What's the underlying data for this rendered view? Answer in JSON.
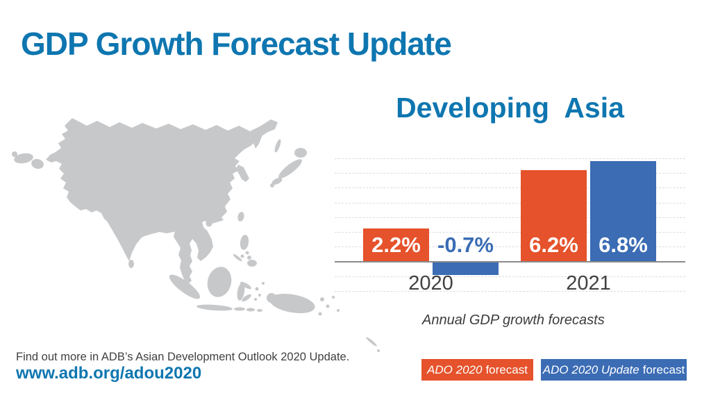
{
  "header": {
    "title": "GDP Growth Forecast Update"
  },
  "colors": {
    "title_blue": "#0E76B0",
    "orange": "#E5522B",
    "blue": "#3B6CB4",
    "map_gray": "#C7C8CA",
    "axis_gray": "#8A8A8A",
    "gridline_gray": "#DCDCDC",
    "dark_text": "#414042",
    "label_white": "#FFFFFF"
  },
  "chart_data": {
    "type": "bar",
    "title": "Developing  Asia",
    "categories": [
      "2020",
      "2021"
    ],
    "series": [
      {
        "name": "ADO 2020 forecast",
        "color": "#E5522B",
        "values": [
          2.2,
          6.2
        ]
      },
      {
        "name": "ADO 2020 Update forecast",
        "color": "#3B6CB4",
        "values": [
          -0.7,
          6.8
        ]
      }
    ],
    "data_labels": [
      [
        "2.2%",
        "-0.7%"
      ],
      [
        "6.2%",
        "6.8%"
      ]
    ],
    "unit": "percent",
    "ylim": [
      -2,
      7
    ],
    "gridline_step": 1,
    "grid": "horizontal dashed",
    "baseline": "solid zero axis",
    "caption": "Annual GDP growth forecasts",
    "legend_position": "bottom right"
  },
  "legend": {
    "items": [
      {
        "label_italic": "ADO 2020",
        "label_regular": "forecast",
        "color": "#E5522B"
      },
      {
        "label_italic": "ADO 2020 Update",
        "label_regular": "forecast",
        "color": "#3B6CB4"
      }
    ]
  },
  "map": {
    "region": "developing-asia-silhouette",
    "color": "#C7C8CA"
  },
  "footer": {
    "line1": "Find out more in ADB’s Asian Development Outlook 2020 Update.",
    "url": "www.adb.org/adou2020"
  }
}
